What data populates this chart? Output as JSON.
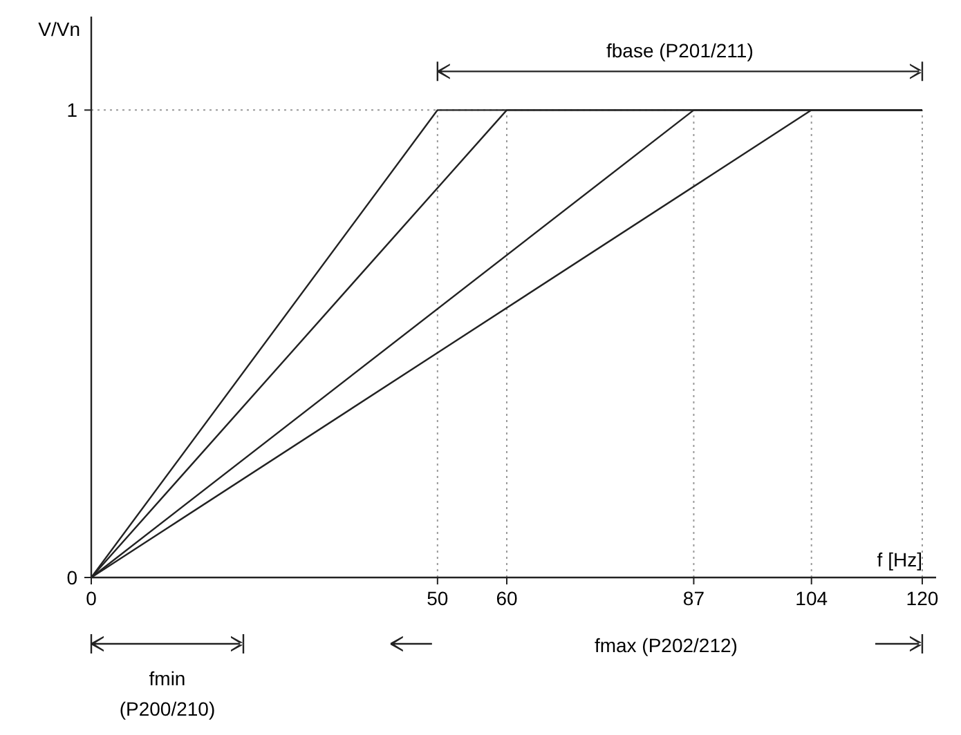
{
  "chart_data": {
    "type": "line",
    "xlabel": "f [Hz]",
    "ylabel": "V/Vn",
    "xlim": [
      0,
      122
    ],
    "ylim": [
      0,
      1.2
    ],
    "xticks": [
      0,
      50,
      60,
      87,
      104,
      120
    ],
    "yticks": [
      0,
      1
    ],
    "series": [
      {
        "color": "#222222",
        "x": [
          0,
          50,
          120
        ],
        "values": [
          0,
          1,
          1
        ]
      },
      {
        "color": "#222222",
        "x": [
          0,
          60,
          120
        ],
        "values": [
          0,
          1,
          1
        ]
      },
      {
        "color": "#222222",
        "x": [
          0,
          87,
          120
        ],
        "values": [
          0,
          1,
          1
        ]
      },
      {
        "color": "#222222",
        "x": [
          0,
          104,
          120
        ],
        "values": [
          0,
          1,
          1
        ]
      }
    ],
    "marker": "none",
    "line_style": "solid",
    "grid": false,
    "ref_lines": [
      {
        "axis": "x",
        "value": 50,
        "line_style": "dotted",
        "color": "#999999"
      },
      {
        "axis": "x",
        "value": 60,
        "line_style": "dotted",
        "color": "#999999"
      },
      {
        "axis": "x",
        "value": 87,
        "line_style": "dotted",
        "color": "#999999"
      },
      {
        "axis": "x",
        "value": 104,
        "line_style": "dotted",
        "color": "#999999"
      },
      {
        "axis": "x",
        "value": 120,
        "line_style": "dotted",
        "color": "#999999"
      },
      {
        "axis": "y",
        "value": 1,
        "line_style": "dotted",
        "color": "#999999"
      }
    ],
    "annotations": [
      "fbase (P201/211)",
      "fmax (P202/212)",
      "fmin (P200/210)"
    ]
  }
}
